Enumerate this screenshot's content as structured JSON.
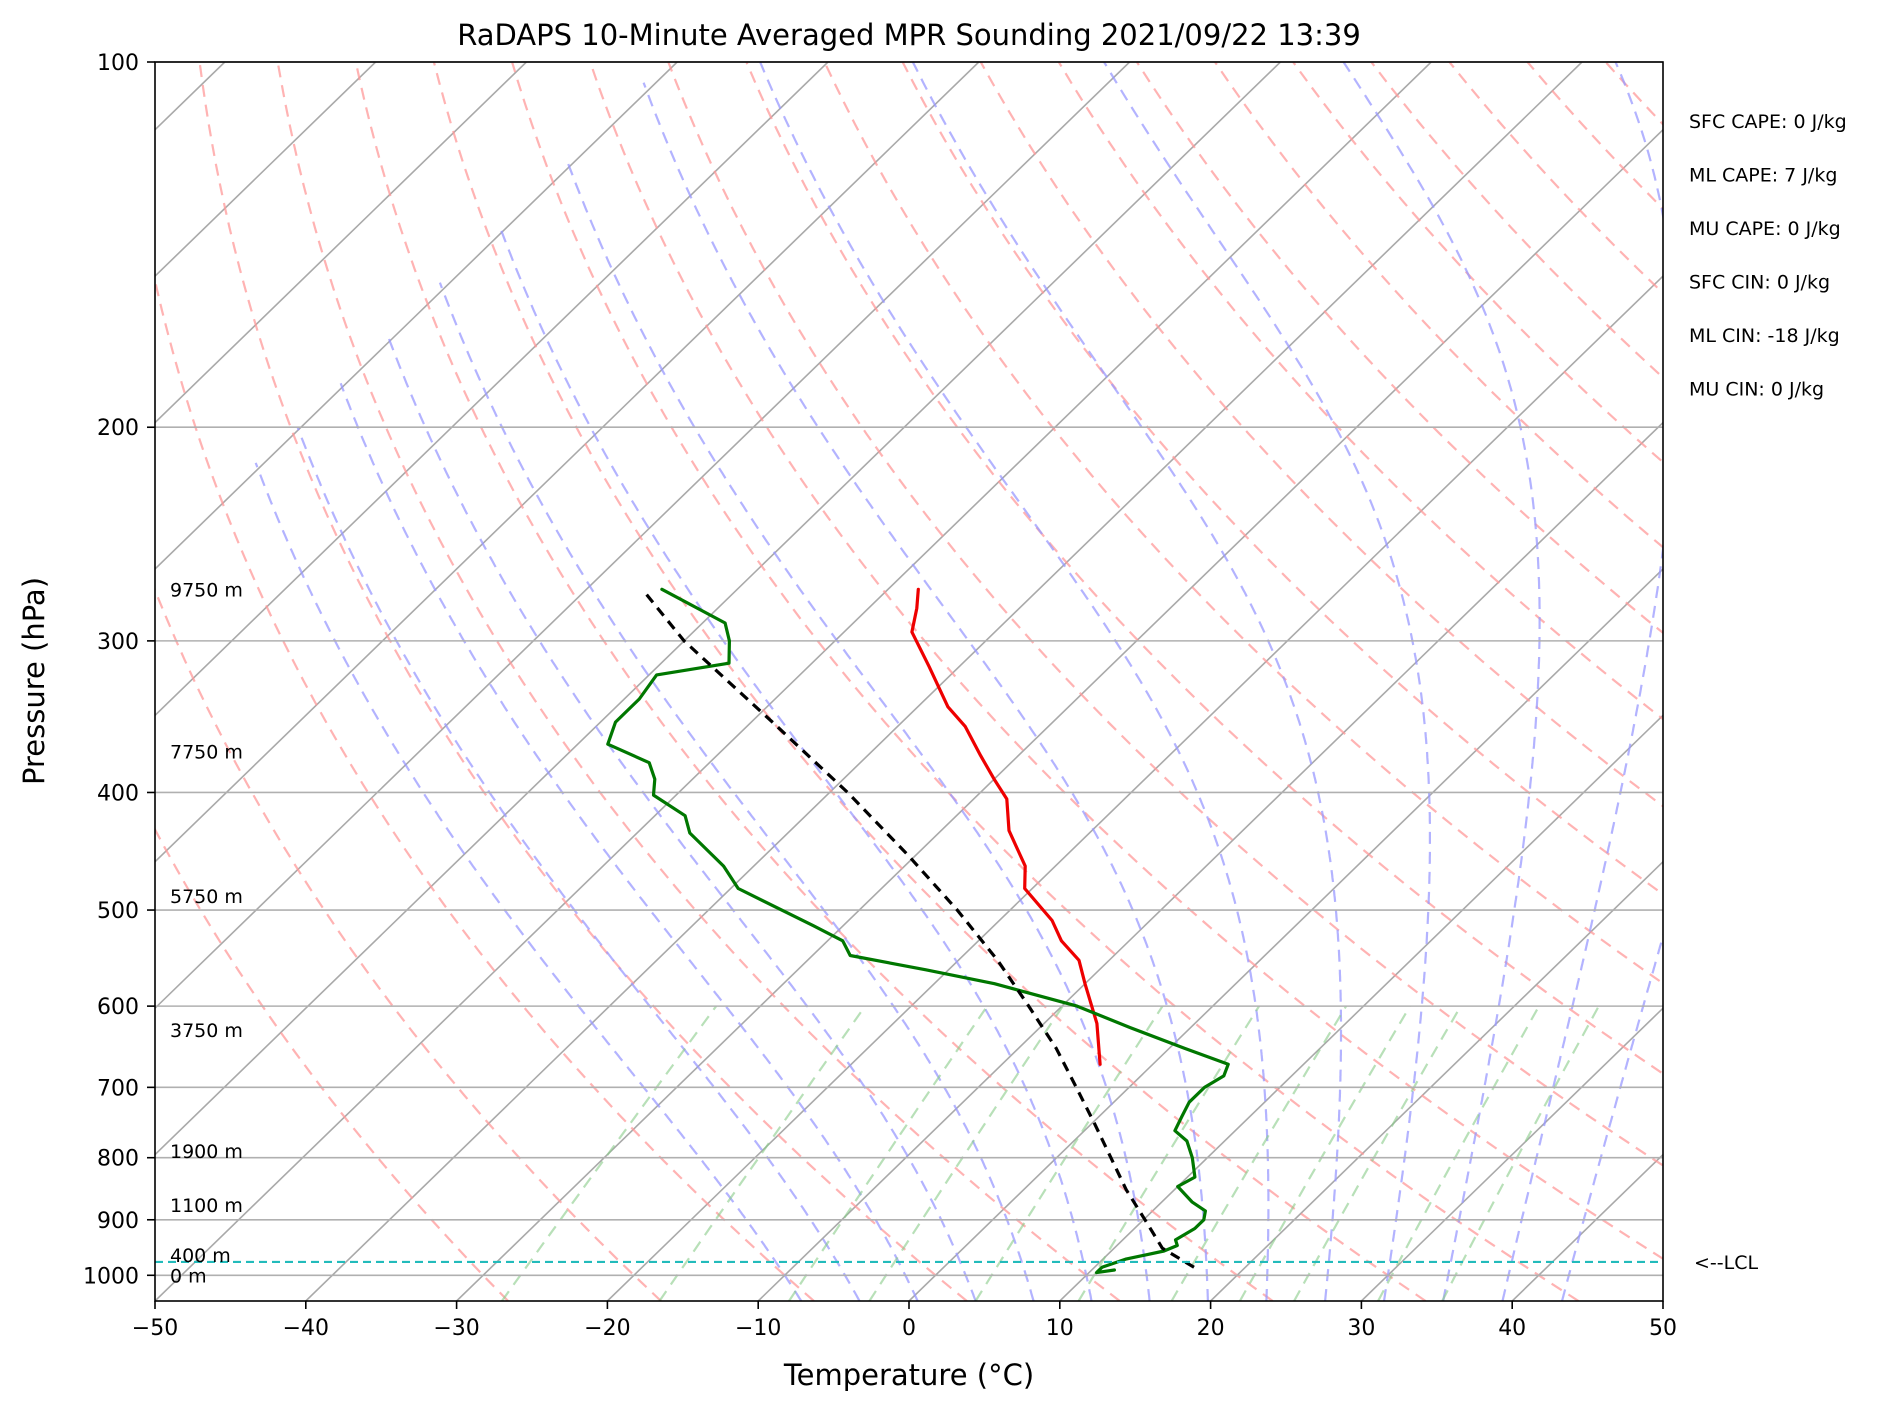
{
  "chart_data": {
    "type": "line",
    "title": "RaDAPS 10-Minute Averaged MPR Sounding 2021/09/22 13:39",
    "xlabel": "Temperature (°C)",
    "ylabel": "Pressure (hPa)",
    "xlim": [
      -50,
      50
    ],
    "ylim": [
      1050,
      100
    ],
    "y_scale": "log",
    "grid": true,
    "x_ticks": [
      "−50",
      "−40",
      "−30",
      "−20",
      "−10",
      "0",
      "10",
      "20",
      "30",
      "40",
      "50"
    ],
    "y_ticks": [
      "100",
      "200",
      "300",
      "400",
      "500",
      "600",
      "700",
      "800",
      "900",
      "1000"
    ],
    "series": [
      {
        "color": "#ee0000",
        "points": [
          {
            "p": 272,
            "t": -48.0
          },
          {
            "p": 282,
            "t": -46.8
          },
          {
            "p": 295,
            "t": -45.5
          },
          {
            "p": 315,
            "t": -42.0
          },
          {
            "p": 340,
            "t": -38.0
          },
          {
            "p": 353,
            "t": -35.5
          },
          {
            "p": 373,
            "t": -32.5
          },
          {
            "p": 390,
            "t": -30.0
          },
          {
            "p": 405,
            "t": -27.8
          },
          {
            "p": 430,
            "t": -25.5
          },
          {
            "p": 460,
            "t": -22.0
          },
          {
            "p": 480,
            "t": -20.5
          },
          {
            "p": 510,
            "t": -16.5
          },
          {
            "p": 530,
            "t": -14.5
          },
          {
            "p": 550,
            "t": -12.0
          },
          {
            "p": 575,
            "t": -10.0
          },
          {
            "p": 620,
            "t": -6.5
          },
          {
            "p": 670,
            "t": -3.5
          }
        ]
      },
      {
        "color": "#007700",
        "points": [
          {
            "p": 272,
            "t": -65.0
          },
          {
            "p": 290,
            "t": -58.5
          },
          {
            "p": 300,
            "t": -57.0
          },
          {
            "p": 313,
            "t": -55.5
          },
          {
            "p": 320,
            "t": -59.5
          },
          {
            "p": 335,
            "t": -59.0
          },
          {
            "p": 350,
            "t": -59.0
          },
          {
            "p": 365,
            "t": -58.0
          },
          {
            "p": 378,
            "t": -54.0
          },
          {
            "p": 390,
            "t": -52.5
          },
          {
            "p": 402,
            "t": -51.5
          },
          {
            "p": 418,
            "t": -48.0
          },
          {
            "p": 432,
            "t": -46.5
          },
          {
            "p": 460,
            "t": -42.0
          },
          {
            "p": 480,
            "t": -39.5
          },
          {
            "p": 515,
            "t": -32.0
          },
          {
            "p": 530,
            "t": -29.0
          },
          {
            "p": 545,
            "t": -27.5
          },
          {
            "p": 560,
            "t": -21.5
          },
          {
            "p": 575,
            "t": -16.0
          },
          {
            "p": 600,
            "t": -9.0
          },
          {
            "p": 625,
            "t": -4.0
          },
          {
            "p": 650,
            "t": 1.0
          },
          {
            "p": 670,
            "t": 5.0
          },
          {
            "p": 685,
            "t": 5.5
          },
          {
            "p": 700,
            "t": 5.0
          },
          {
            "p": 720,
            "t": 5.0
          },
          {
            "p": 740,
            "t": 5.5
          },
          {
            "p": 760,
            "t": 6.0
          },
          {
            "p": 775,
            "t": 7.5
          },
          {
            "p": 800,
            "t": 9.0
          },
          {
            "p": 830,
            "t": 10.5
          },
          {
            "p": 845,
            "t": 10.0
          },
          {
            "p": 870,
            "t": 12.0
          },
          {
            "p": 885,
            "t": 13.5
          },
          {
            "p": 900,
            "t": 14.0
          },
          {
            "p": 915,
            "t": 14.0
          },
          {
            "p": 935,
            "t": 13.5
          },
          {
            "p": 945,
            "t": 14.0
          },
          {
            "p": 955,
            "t": 13.5
          },
          {
            "p": 970,
            "t": 11.5
          },
          {
            "p": 985,
            "t": 10.5
          },
          {
            "p": 995,
            "t": 10.5
          },
          {
            "p": 990,
            "t": 11.5
          }
        ]
      },
      {
        "color": "#000000",
        "dash": "dashed",
        "points": [
          {
            "p": 985,
            "t": 16.6
          },
          {
            "p": 950,
            "t": 13.2
          },
          {
            "p": 900,
            "t": 10.1
          },
          {
            "p": 850,
            "t": 6.8
          },
          {
            "p": 800,
            "t": 3.6
          },
          {
            "p": 750,
            "t": 0.2
          },
          {
            "p": 700,
            "t": -3.5
          },
          {
            "p": 650,
            "t": -7.5
          },
          {
            "p": 600,
            "t": -12.2
          },
          {
            "p": 550,
            "t": -17.4
          },
          {
            "p": 500,
            "t": -23.5
          },
          {
            "p": 450,
            "t": -30.6
          },
          {
            "p": 400,
            "t": -38.8
          },
          {
            "p": 350,
            "t": -48.6
          },
          {
            "p": 300,
            "t": -60.0
          },
          {
            "p": 272,
            "t": -66.3
          }
        ]
      }
    ],
    "lcl": {
      "p": 975,
      "label": "<--LCL",
      "color": "#22bbbb"
    },
    "height_labels": [
      {
        "text": "9750 m",
        "p": 272
      },
      {
        "text": "7750 m",
        "p": 370
      },
      {
        "text": "5750 m",
        "p": 487
      },
      {
        "text": "3750 m",
        "p": 628
      },
      {
        "text": "1900 m",
        "p": 790
      },
      {
        "text": "1100 m",
        "p": 875
      },
      {
        "text": "400 m",
        "p": 962
      },
      {
        "text": "0 m",
        "p": 1000
      }
    ],
    "stats": [
      "SFC CAPE: 0 J/kg",
      "ML CAPE: 7 J/kg",
      "MU CAPE: 0 J/kg",
      "SFC CIN: 0 J/kg",
      "ML CIN: -18 J/kg",
      "MU CIN: 0 J/kg"
    ],
    "background_lines": {
      "isotherm_color": "#a9a9a9",
      "dry_adiabat_color": "#ff9a9a",
      "moist_adiabat_color": "#9a9aff",
      "mixing_ratio_color": "#88cc88",
      "mixing_ratio_top_p": 600
    }
  }
}
